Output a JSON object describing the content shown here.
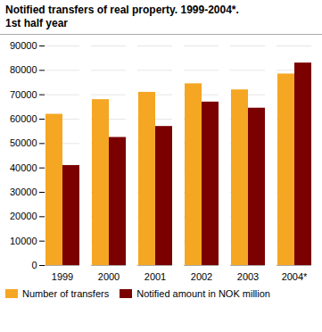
{
  "chart_data": {
    "type": "bar",
    "title": "Notified transfers of real property. 1999-2004*.",
    "subtitle": "1st half year",
    "categories": [
      "1999",
      "2000",
      "2001",
      "2002",
      "2003",
      "2004*"
    ],
    "series": [
      {
        "name": "Number of transfers",
        "color": "#F5A623",
        "values": [
          62000,
          68000,
          71000,
          74500,
          72000,
          78500
        ]
      },
      {
        "name": "Notified amount in NOK million",
        "color": "#7B0000",
        "values": [
          41000,
          52500,
          57000,
          67000,
          64500,
          83000
        ]
      }
    ],
    "ylim": [
      0,
      90000
    ],
    "yticks": [
      0,
      10000,
      20000,
      30000,
      40000,
      50000,
      60000,
      70000,
      80000,
      90000
    ],
    "grid": true,
    "legend": "lower left"
  }
}
